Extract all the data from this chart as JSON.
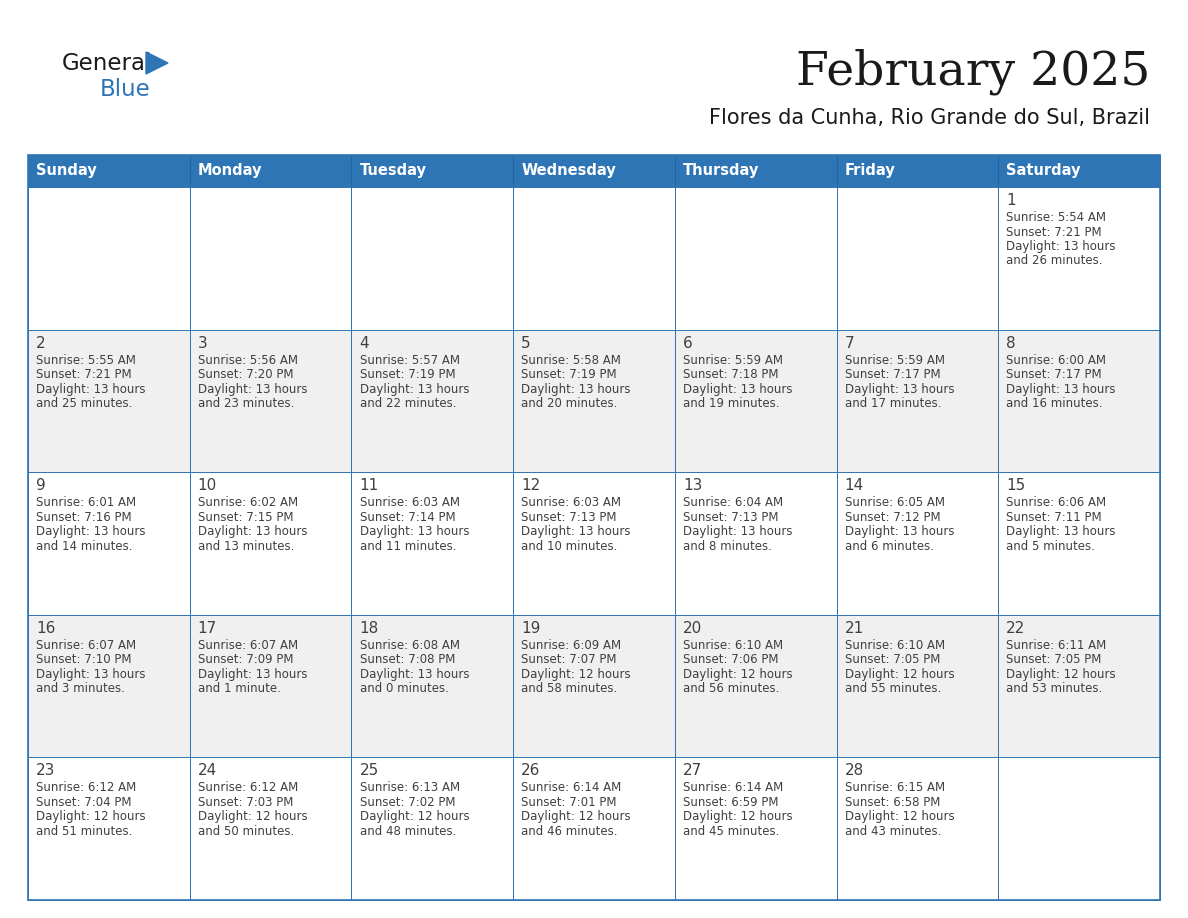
{
  "title": "February 2025",
  "subtitle": "Flores da Cunha, Rio Grande do Sul, Brazil",
  "header_bg": "#2E75B6",
  "header_text_color": "#FFFFFF",
  "cell_bg_even": "#FFFFFF",
  "cell_bg_odd": "#F0F0F0",
  "border_color": "#2E75B6",
  "day_num_color": "#404040",
  "text_color": "#404040",
  "days_of_week": [
    "Sunday",
    "Monday",
    "Tuesday",
    "Wednesday",
    "Thursday",
    "Friday",
    "Saturday"
  ],
  "calendar_data": [
    [
      null,
      null,
      null,
      null,
      null,
      null,
      {
        "day": "1",
        "sunrise": "5:54 AM",
        "sunset": "7:21 PM",
        "daylight": "13 hours",
        "daylight2": "and 26 minutes."
      }
    ],
    [
      {
        "day": "2",
        "sunrise": "5:55 AM",
        "sunset": "7:21 PM",
        "daylight": "13 hours",
        "daylight2": "and 25 minutes."
      },
      {
        "day": "3",
        "sunrise": "5:56 AM",
        "sunset": "7:20 PM",
        "daylight": "13 hours",
        "daylight2": "and 23 minutes."
      },
      {
        "day": "4",
        "sunrise": "5:57 AM",
        "sunset": "7:19 PM",
        "daylight": "13 hours",
        "daylight2": "and 22 minutes."
      },
      {
        "day": "5",
        "sunrise": "5:58 AM",
        "sunset": "7:19 PM",
        "daylight": "13 hours",
        "daylight2": "and 20 minutes."
      },
      {
        "day": "6",
        "sunrise": "5:59 AM",
        "sunset": "7:18 PM",
        "daylight": "13 hours",
        "daylight2": "and 19 minutes."
      },
      {
        "day": "7",
        "sunrise": "5:59 AM",
        "sunset": "7:17 PM",
        "daylight": "13 hours",
        "daylight2": "and 17 minutes."
      },
      {
        "day": "8",
        "sunrise": "6:00 AM",
        "sunset": "7:17 PM",
        "daylight": "13 hours",
        "daylight2": "and 16 minutes."
      }
    ],
    [
      {
        "day": "9",
        "sunrise": "6:01 AM",
        "sunset": "7:16 PM",
        "daylight": "13 hours",
        "daylight2": "and 14 minutes."
      },
      {
        "day": "10",
        "sunrise": "6:02 AM",
        "sunset": "7:15 PM",
        "daylight": "13 hours",
        "daylight2": "and 13 minutes."
      },
      {
        "day": "11",
        "sunrise": "6:03 AM",
        "sunset": "7:14 PM",
        "daylight": "13 hours",
        "daylight2": "and 11 minutes."
      },
      {
        "day": "12",
        "sunrise": "6:03 AM",
        "sunset": "7:13 PM",
        "daylight": "13 hours",
        "daylight2": "and 10 minutes."
      },
      {
        "day": "13",
        "sunrise": "6:04 AM",
        "sunset": "7:13 PM",
        "daylight": "13 hours",
        "daylight2": "and 8 minutes."
      },
      {
        "day": "14",
        "sunrise": "6:05 AM",
        "sunset": "7:12 PM",
        "daylight": "13 hours",
        "daylight2": "and 6 minutes."
      },
      {
        "day": "15",
        "sunrise": "6:06 AM",
        "sunset": "7:11 PM",
        "daylight": "13 hours",
        "daylight2": "and 5 minutes."
      }
    ],
    [
      {
        "day": "16",
        "sunrise": "6:07 AM",
        "sunset": "7:10 PM",
        "daylight": "13 hours",
        "daylight2": "and 3 minutes."
      },
      {
        "day": "17",
        "sunrise": "6:07 AM",
        "sunset": "7:09 PM",
        "daylight": "13 hours",
        "daylight2": "and 1 minute."
      },
      {
        "day": "18",
        "sunrise": "6:08 AM",
        "sunset": "7:08 PM",
        "daylight": "13 hours",
        "daylight2": "and 0 minutes."
      },
      {
        "day": "19",
        "sunrise": "6:09 AM",
        "sunset": "7:07 PM",
        "daylight": "12 hours",
        "daylight2": "and 58 minutes."
      },
      {
        "day": "20",
        "sunrise": "6:10 AM",
        "sunset": "7:06 PM",
        "daylight": "12 hours",
        "daylight2": "and 56 minutes."
      },
      {
        "day": "21",
        "sunrise": "6:10 AM",
        "sunset": "7:05 PM",
        "daylight": "12 hours",
        "daylight2": "and 55 minutes."
      },
      {
        "day": "22",
        "sunrise": "6:11 AM",
        "sunset": "7:05 PM",
        "daylight": "12 hours",
        "daylight2": "and 53 minutes."
      }
    ],
    [
      {
        "day": "23",
        "sunrise": "6:12 AM",
        "sunset": "7:04 PM",
        "daylight": "12 hours",
        "daylight2": "and 51 minutes."
      },
      {
        "day": "24",
        "sunrise": "6:12 AM",
        "sunset": "7:03 PM",
        "daylight": "12 hours",
        "daylight2": "and 50 minutes."
      },
      {
        "day": "25",
        "sunrise": "6:13 AM",
        "sunset": "7:02 PM",
        "daylight": "12 hours",
        "daylight2": "and 48 minutes."
      },
      {
        "day": "26",
        "sunrise": "6:14 AM",
        "sunset": "7:01 PM",
        "daylight": "12 hours",
        "daylight2": "and 46 minutes."
      },
      {
        "day": "27",
        "sunrise": "6:14 AM",
        "sunset": "6:59 PM",
        "daylight": "12 hours",
        "daylight2": "and 45 minutes."
      },
      {
        "day": "28",
        "sunrise": "6:15 AM",
        "sunset": "6:58 PM",
        "daylight": "12 hours",
        "daylight2": "and 43 minutes."
      },
      null
    ]
  ],
  "logo_general_color": "#1A1A1A",
  "logo_blue_color": "#2E75B6",
  "logo_triangle_color": "#2E75B6",
  "title_color": "#1A1A1A",
  "subtitle_color": "#1A1A1A"
}
